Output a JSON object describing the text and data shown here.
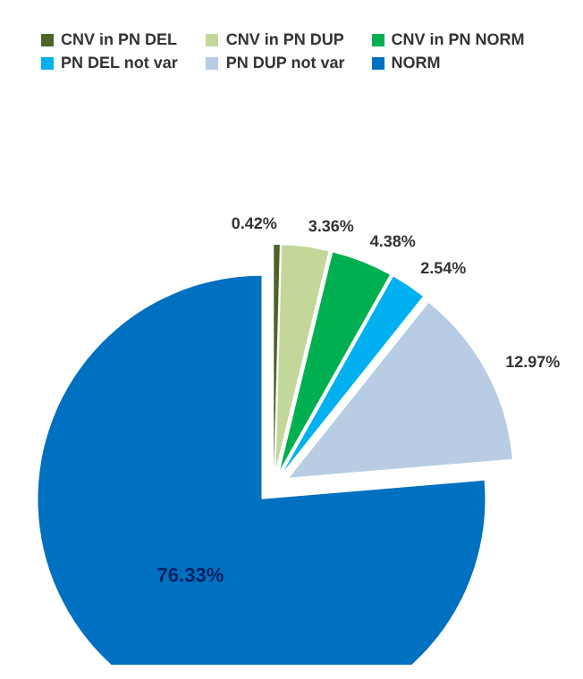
{
  "chart_data": {
    "type": "pie",
    "categories": [
      "CNV in PN DEL",
      "CNV in PN DUP",
      "CNV in PN NORM",
      "PN DEL not var",
      "PN DUP not var",
      "NORM"
    ],
    "values": [
      0.42,
      3.36,
      4.38,
      2.54,
      12.97,
      76.33
    ],
    "colors": [
      "#4f6228",
      "#c4d79b",
      "#00b050",
      "#00b0f0",
      "#b8cce4",
      "#0070c0"
    ],
    "value_labels": [
      "0.42%",
      "3.36%",
      "4.38%",
      "2.54%",
      "12.97%",
      "76.33%"
    ],
    "legend": "top"
  }
}
